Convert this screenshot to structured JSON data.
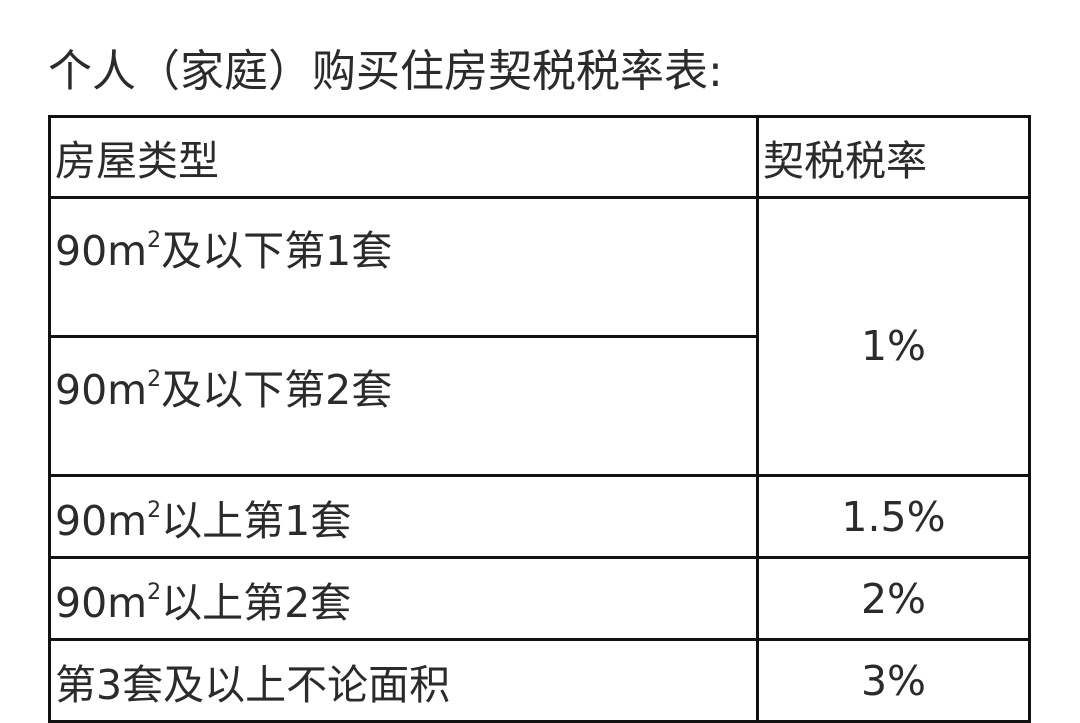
{
  "title": "个人（家庭）购买住房契税税率表:",
  "table": {
    "headers": [
      "房屋类型",
      "契税税率"
    ],
    "rows": [
      {
        "area": "90m",
        "sup": "2",
        "type": "及以下第1套",
        "rate": "1%"
      },
      {
        "area": "90m",
        "sup": "2",
        "type": "及以下第2套",
        "rate": "1%"
      },
      {
        "area": "90m",
        "sup": "2",
        "type": "以上第1套",
        "rate": "1.5%"
      },
      {
        "area": "90m",
        "sup": "2",
        "type": "以上第2套",
        "rate": "2%"
      },
      {
        "area": "",
        "sup": "",
        "type": "第3套及以上不论面积",
        "rate": "3%"
      }
    ]
  }
}
